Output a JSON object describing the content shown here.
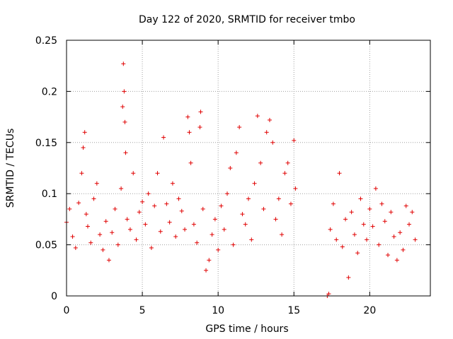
{
  "chart_data": {
    "type": "scatter",
    "title": "Day 122 of 2020, SRMTID for receiver tmbo",
    "xlabel": "GPS time / hours",
    "ylabel": "SRMTID / TECUs",
    "xlim": [
      0,
      24
    ],
    "ylim": [
      0,
      0.25
    ],
    "xticks": [
      0,
      5,
      10,
      15,
      20
    ],
    "xtick_labels": [
      "0",
      "5",
      "10",
      "15",
      "20"
    ],
    "yticks": [
      0,
      0.05,
      0.1,
      0.15,
      0.2,
      0.25
    ],
    "ytick_labels": [
      "0",
      "0.05",
      "0.1",
      "0.15",
      "0.2",
      "0.25"
    ],
    "grid": true,
    "marker": "+",
    "colors": {
      "series": "#e00000",
      "grid": "#a0a0a0",
      "axis": "#000000"
    },
    "series": [
      {
        "name": "tmbo",
        "points": [
          [
            0.0,
            0.072
          ],
          [
            0.2,
            0.085
          ],
          [
            0.4,
            0.058
          ],
          [
            0.6,
            0.047
          ],
          [
            0.8,
            0.091
          ],
          [
            1.0,
            0.12
          ],
          [
            1.1,
            0.145
          ],
          [
            1.2,
            0.16
          ],
          [
            1.3,
            0.08
          ],
          [
            1.4,
            0.068
          ],
          [
            1.6,
            0.052
          ],
          [
            1.8,
            0.095
          ],
          [
            2.0,
            0.11
          ],
          [
            2.2,
            0.06
          ],
          [
            2.4,
            0.045
          ],
          [
            2.6,
            0.073
          ],
          [
            2.8,
            0.035
          ],
          [
            3.0,
            0.062
          ],
          [
            3.2,
            0.085
          ],
          [
            3.4,
            0.05
          ],
          [
            3.6,
            0.105
          ],
          [
            3.7,
            0.185
          ],
          [
            3.75,
            0.227
          ],
          [
            3.8,
            0.2
          ],
          [
            3.85,
            0.17
          ],
          [
            3.9,
            0.14
          ],
          [
            4.0,
            0.075
          ],
          [
            4.2,
            0.065
          ],
          [
            4.4,
            0.12
          ],
          [
            4.6,
            0.055
          ],
          [
            4.8,
            0.082
          ],
          [
            5.0,
            0.092
          ],
          [
            5.2,
            0.07
          ],
          [
            5.4,
            0.1
          ],
          [
            5.6,
            0.047
          ],
          [
            5.8,
            0.088
          ],
          [
            6.0,
            0.12
          ],
          [
            6.2,
            0.063
          ],
          [
            6.4,
            0.155
          ],
          [
            6.6,
            0.09
          ],
          [
            6.8,
            0.072
          ],
          [
            7.0,
            0.11
          ],
          [
            7.2,
            0.058
          ],
          [
            7.4,
            0.095
          ],
          [
            7.6,
            0.083
          ],
          [
            7.8,
            0.065
          ],
          [
            8.0,
            0.175
          ],
          [
            8.1,
            0.16
          ],
          [
            8.2,
            0.13
          ],
          [
            8.4,
            0.07
          ],
          [
            8.6,
            0.052
          ],
          [
            8.8,
            0.165
          ],
          [
            8.85,
            0.18
          ],
          [
            9.0,
            0.085
          ],
          [
            9.2,
            0.025
          ],
          [
            9.4,
            0.035
          ],
          [
            9.6,
            0.06
          ],
          [
            9.8,
            0.075
          ],
          [
            10.0,
            0.045
          ],
          [
            10.2,
            0.088
          ],
          [
            10.4,
            0.065
          ],
          [
            10.6,
            0.1
          ],
          [
            10.8,
            0.125
          ],
          [
            11.0,
            0.05
          ],
          [
            11.2,
            0.14
          ],
          [
            11.4,
            0.165
          ],
          [
            11.6,
            0.08
          ],
          [
            11.8,
            0.07
          ],
          [
            12.0,
            0.095
          ],
          [
            12.2,
            0.055
          ],
          [
            12.4,
            0.11
          ],
          [
            12.6,
            0.176
          ],
          [
            12.8,
            0.13
          ],
          [
            13.0,
            0.085
          ],
          [
            13.2,
            0.16
          ],
          [
            13.4,
            0.172
          ],
          [
            13.6,
            0.15
          ],
          [
            13.8,
            0.075
          ],
          [
            14.0,
            0.095
          ],
          [
            14.2,
            0.06
          ],
          [
            14.4,
            0.12
          ],
          [
            14.6,
            0.13
          ],
          [
            14.8,
            0.09
          ],
          [
            15.0,
            0.152
          ],
          [
            15.1,
            0.105
          ],
          [
            17.2,
            0.0
          ],
          [
            17.3,
            0.002
          ],
          [
            17.4,
            0.065
          ],
          [
            17.6,
            0.09
          ],
          [
            17.8,
            0.055
          ],
          [
            18.0,
            0.12
          ],
          [
            18.2,
            0.048
          ],
          [
            18.4,
            0.075
          ],
          [
            18.6,
            0.018
          ],
          [
            18.8,
            0.082
          ],
          [
            19.0,
            0.06
          ],
          [
            19.2,
            0.042
          ],
          [
            19.4,
            0.095
          ],
          [
            19.6,
            0.07
          ],
          [
            19.8,
            0.055
          ],
          [
            20.0,
            0.085
          ],
          [
            20.2,
            0.068
          ],
          [
            20.4,
            0.105
          ],
          [
            20.6,
            0.05
          ],
          [
            20.8,
            0.09
          ],
          [
            21.0,
            0.073
          ],
          [
            21.2,
            0.04
          ],
          [
            21.4,
            0.082
          ],
          [
            21.6,
            0.058
          ],
          [
            21.8,
            0.035
          ],
          [
            22.0,
            0.062
          ],
          [
            22.2,
            0.045
          ],
          [
            22.4,
            0.088
          ],
          [
            22.6,
            0.07
          ],
          [
            22.8,
            0.082
          ],
          [
            23.0,
            0.055
          ]
        ]
      }
    ]
  }
}
